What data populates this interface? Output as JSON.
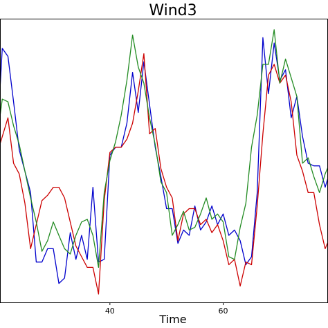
{
  "chart_data": {
    "type": "line",
    "title": "Wind3",
    "xlabel": "Time",
    "ylabel": "",
    "xlim": [
      20.6,
      78.5
    ],
    "ylim": [
      0,
      1
    ],
    "x_ticks": [
      40,
      60
    ],
    "grid": false,
    "x": [
      20,
      21,
      22,
      23,
      24,
      25,
      26,
      27,
      28,
      29,
      30,
      31,
      32,
      33,
      34,
      35,
      36,
      37,
      38,
      39,
      40,
      41,
      42,
      43,
      44,
      45,
      46,
      47,
      48,
      49,
      50,
      51,
      52,
      53,
      54,
      55,
      56,
      57,
      58,
      59,
      60,
      61,
      62,
      63,
      64,
      65,
      66,
      67,
      68,
      69,
      70,
      71,
      72,
      73,
      74,
      75,
      76,
      77,
      78,
      79
    ],
    "series": [
      {
        "color": "#0000cc",
        "values": [
          0.54,
          0.92,
          0.89,
          0.72,
          0.54,
          0.46,
          0.38,
          0.12,
          0.12,
          0.17,
          0.17,
          0.04,
          0.06,
          0.23,
          0.13,
          0.22,
          0.13,
          0.4,
          0.12,
          0.13,
          0.52,
          0.55,
          0.55,
          0.64,
          0.83,
          0.68,
          0.87,
          0.71,
          0.55,
          0.44,
          0.32,
          0.32,
          0.19,
          0.24,
          0.22,
          0.33,
          0.24,
          0.27,
          0.33,
          0.26,
          0.3,
          0.22,
          0.24,
          0.2,
          0.11,
          0.14,
          0.38,
          0.96,
          0.75,
          0.94,
          0.8,
          0.84,
          0.66,
          0.74,
          0.59,
          0.49,
          0.48,
          0.48,
          0.4,
          0.47
        ]
      },
      {
        "color": "#cc0000",
        "values": [
          0.52,
          0.59,
          0.66,
          0.49,
          0.45,
          0.34,
          0.17,
          0.26,
          0.35,
          0.37,
          0.4,
          0.4,
          0.36,
          0.27,
          0.18,
          0.14,
          0.1,
          0.1,
          0.0,
          0.35,
          0.53,
          0.55,
          0.55,
          0.58,
          0.64,
          0.76,
          0.9,
          0.6,
          0.62,
          0.47,
          0.4,
          0.36,
          0.2,
          0.3,
          0.32,
          0.32,
          0.26,
          0.28,
          0.23,
          0.26,
          0.2,
          0.11,
          0.13,
          0.03,
          0.12,
          0.11,
          0.33,
          0.6,
          0.82,
          0.86,
          0.79,
          0.82,
          0.72,
          0.52,
          0.46,
          0.38,
          0.38,
          0.26,
          0.17,
          0.22
        ]
      },
      {
        "color": "#228b22",
        "values": [
          0.57,
          0.73,
          0.72,
          0.63,
          0.56,
          0.46,
          0.36,
          0.27,
          0.16,
          0.2,
          0.27,
          0.22,
          0.17,
          0.15,
          0.22,
          0.27,
          0.28,
          0.22,
          0.1,
          0.38,
          0.5,
          0.57,
          0.67,
          0.8,
          0.97,
          0.85,
          0.79,
          0.66,
          0.56,
          0.42,
          0.38,
          0.22,
          0.26,
          0.31,
          0.24,
          0.25,
          0.3,
          0.36,
          0.28,
          0.3,
          0.27,
          0.14,
          0.13,
          0.25,
          0.34,
          0.55,
          0.67,
          0.86,
          0.86,
          0.99,
          0.79,
          0.88,
          0.81,
          0.74,
          0.49,
          0.51,
          0.44,
          0.38,
          0.45,
          0.5
        ]
      }
    ]
  }
}
